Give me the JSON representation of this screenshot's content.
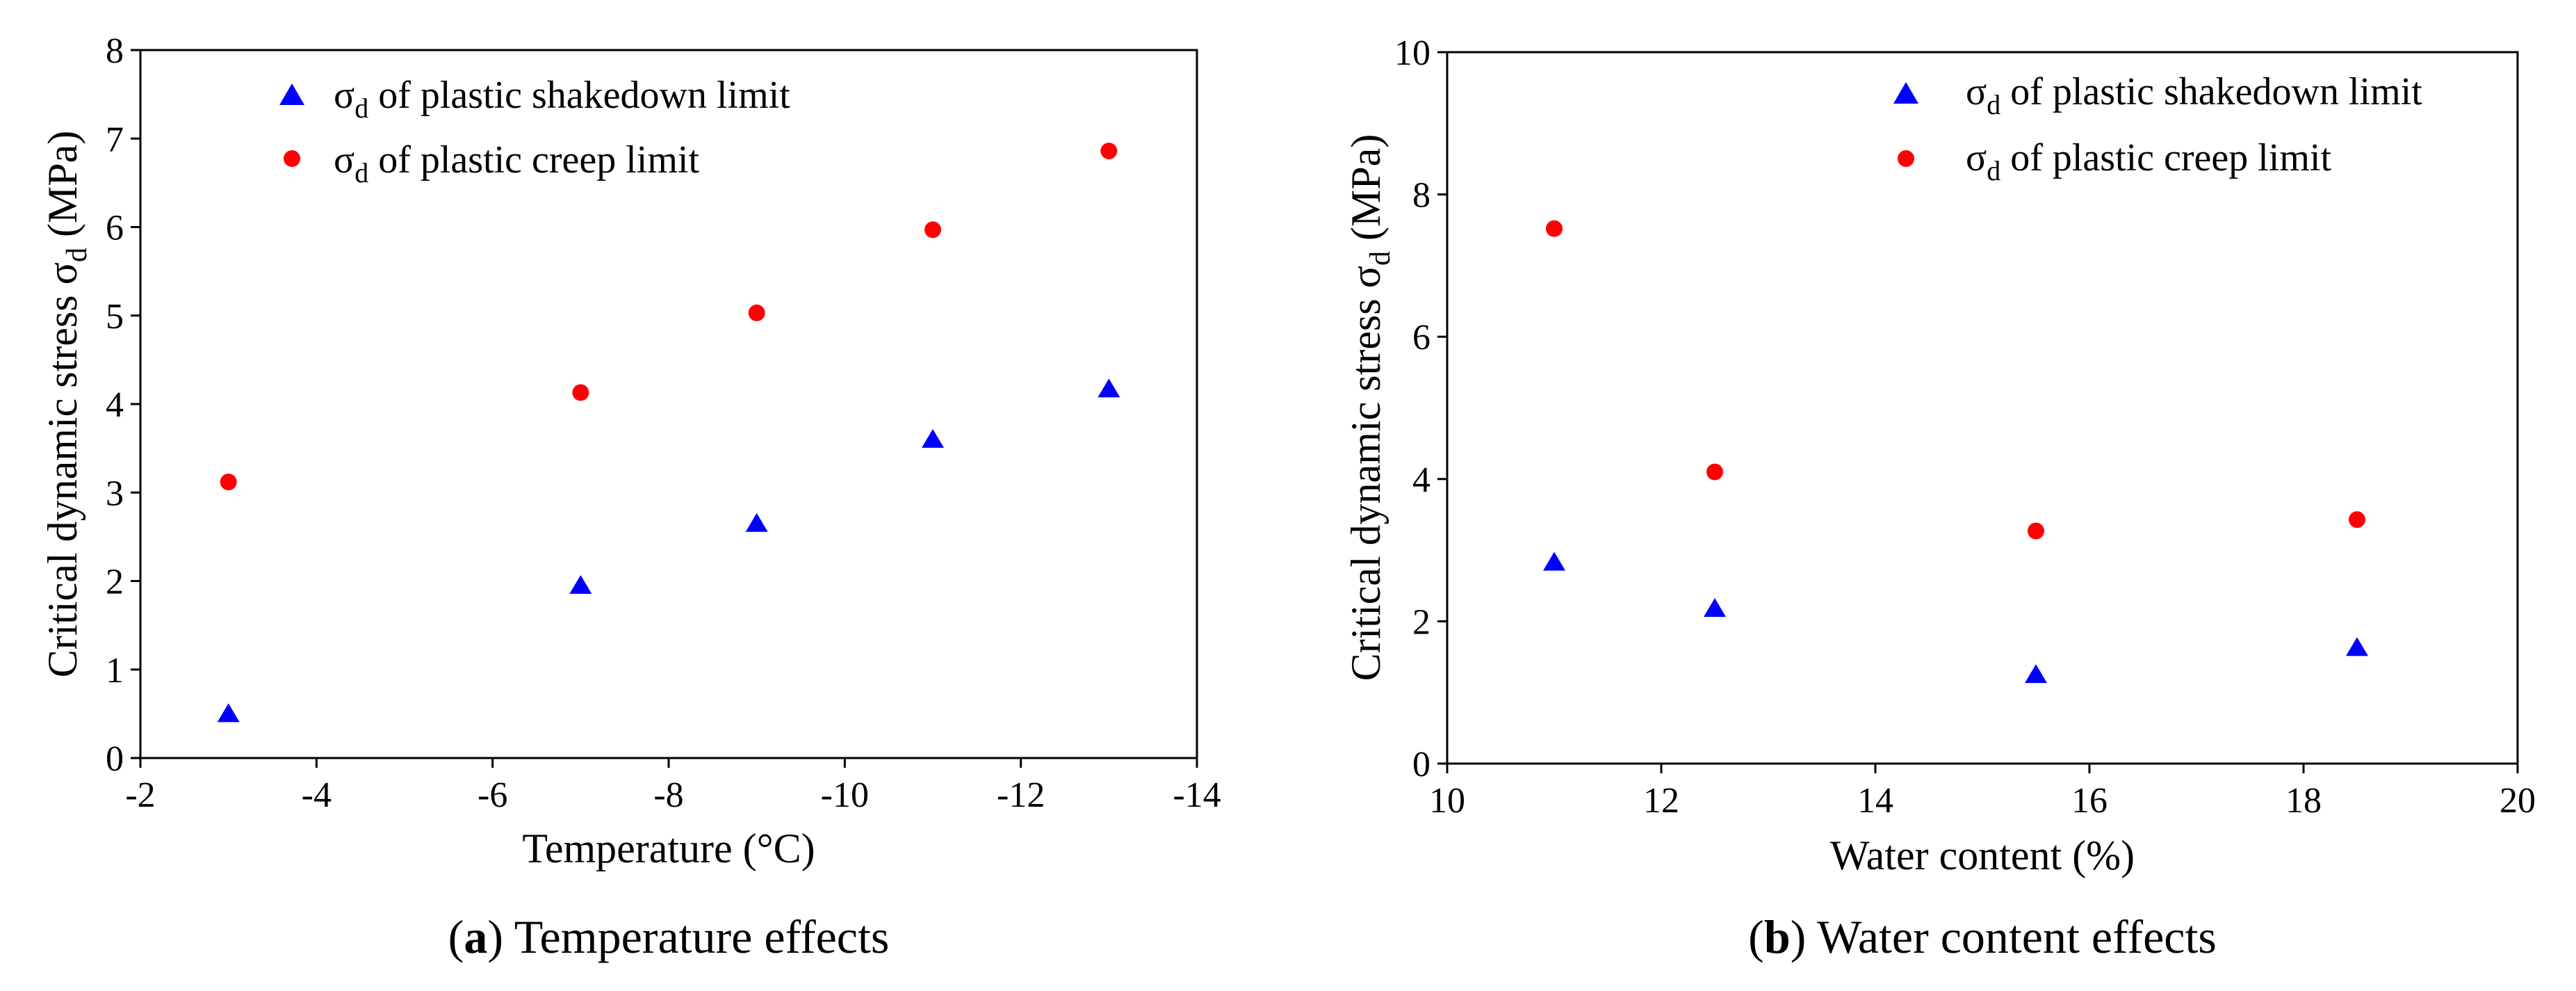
{
  "colors": {
    "shakedown": "#0000ff",
    "creep": "#ff0000",
    "axis": "#000000"
  },
  "chart_data": [
    {
      "type": "scatter",
      "caption_letter": "a",
      "caption_text": "Temperature effects",
      "xlabel": "Temperature  (°C)",
      "ylabel": "Critical dynamic stress σd (MPa)",
      "ylabel_main": "Critical dynamic stress σ",
      "ylabel_sub": "d",
      "ylabel_unit": " (MPa)",
      "xlim": [
        -2,
        -14
      ],
      "ylim": [
        0,
        8
      ],
      "xticks": [
        -2,
        -4,
        -6,
        -8,
        -10,
        -12,
        -14
      ],
      "yticks": [
        0,
        1,
        2,
        3,
        4,
        5,
        6,
        7,
        8
      ],
      "legend_position": "top-left",
      "series": [
        {
          "name": "σd of plastic shakedown limit",
          "symbol": "σ",
          "sub": "d",
          "label": " of plastic shakedown limit",
          "marker": "triangle",
          "color": "#0000ff",
          "x": [
            -3,
            -7,
            -9,
            -11,
            -13
          ],
          "y": [
            0.5,
            1.95,
            2.65,
            3.6,
            4.17
          ]
        },
        {
          "name": "σd of plastic creep limit",
          "symbol": "σ",
          "sub": "d",
          "label": " of plastic creep limit",
          "marker": "circle",
          "color": "#ff0000",
          "x": [
            -3,
            -7,
            -9,
            -11,
            -13
          ],
          "y": [
            3.12,
            4.13,
            5.03,
            5.97,
            6.86
          ]
        }
      ]
    },
    {
      "type": "scatter",
      "caption_letter": "b",
      "caption_text": "Water content effects",
      "xlabel": "Water content  (%)",
      "ylabel": "Critical dynamic stress σd (MPa)",
      "ylabel_main": "Critical dynamic stress σ",
      "ylabel_sub": "d",
      "ylabel_unit": " (MPa)",
      "xlim": [
        10,
        20
      ],
      "ylim": [
        0,
        10
      ],
      "xticks": [
        10,
        12,
        14,
        16,
        18,
        20
      ],
      "yticks": [
        0,
        2,
        4,
        6,
        8,
        10
      ],
      "legend_position": "top-right",
      "series": [
        {
          "name": "σd of plastic shakedown limit",
          "symbol": "σ",
          "sub": "d",
          "label": " of plastic shakedown limit",
          "marker": "triangle",
          "color": "#0000ff",
          "x": [
            11,
            12.5,
            15.5,
            18.5
          ],
          "y": [
            2.83,
            2.18,
            1.25,
            1.63
          ]
        },
        {
          "name": "σd of plastic creep limit",
          "symbol": "σ",
          "sub": "d",
          "label": " of plastic creep limit",
          "marker": "circle",
          "color": "#ff0000",
          "x": [
            11,
            12.5,
            15.5,
            18.5
          ],
          "y": [
            7.52,
            4.1,
            3.27,
            3.43
          ]
        }
      ]
    }
  ]
}
